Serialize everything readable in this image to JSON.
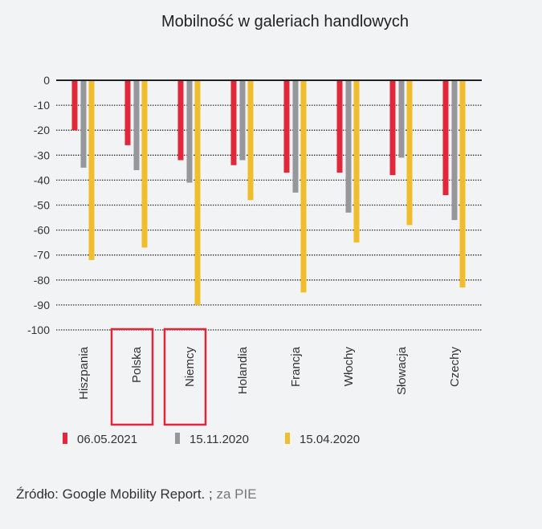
{
  "chart_data": {
    "type": "bar",
    "title": "Mobilność w galeriach handlowych",
    "xlabel": "",
    "ylabel": "",
    "ylim": [
      -100,
      0
    ],
    "yticks": [
      0,
      -10,
      -20,
      -30,
      -40,
      -50,
      -60,
      -70,
      -80,
      -90,
      -100
    ],
    "grid": true,
    "legend_position": "bottom",
    "categories": [
      "Hiszpania",
      "Polska",
      "Niemcy",
      "Holandia",
      "Francja",
      "Włochy",
      "Słowacja",
      "Czechy"
    ],
    "highlighted_categories": [
      "Polska",
      "Niemcy"
    ],
    "series": [
      {
        "name": "06.05.2021",
        "color": "#e0283a",
        "values": [
          -20,
          -26,
          -32,
          -34,
          -37,
          -37,
          -38,
          -46
        ]
      },
      {
        "name": "15.11.2020",
        "color": "#96979b",
        "values": [
          -35,
          -36,
          -41,
          -32,
          -45,
          -53,
          -31,
          -56
        ]
      },
      {
        "name": "15.04.2020",
        "color": "#f0bd2c",
        "values": [
          -72,
          -67,
          -90,
          -48,
          -85,
          -65,
          -58,
          -83
        ]
      }
    ]
  },
  "source": {
    "text": "Źródło: Google Mobility Report. ;",
    "suffix": "za PIE"
  },
  "highlight_color": "#e0283a"
}
